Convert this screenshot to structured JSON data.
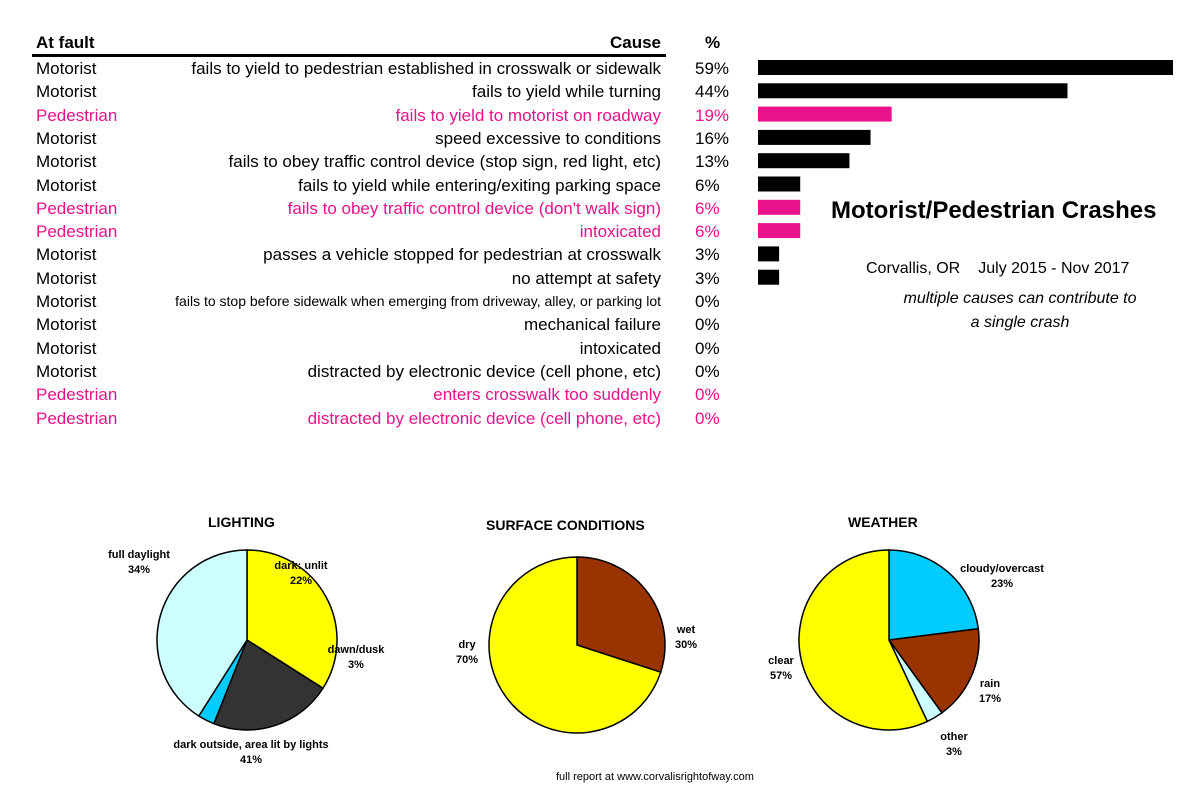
{
  "table": {
    "headers": {
      "fault": "At fault",
      "cause": "Cause",
      "pct": "%"
    },
    "rows": [
      {
        "fault": "Motorist",
        "cause": "fails to yield to pedestrian established in crosswalk or sidewalk",
        "pct": "59%",
        "value": 59,
        "party": "motorist"
      },
      {
        "fault": "Motorist",
        "cause": "fails to yield while turning",
        "pct": "44%",
        "value": 44,
        "party": "motorist"
      },
      {
        "fault": "Pedestrian",
        "cause": "fails to yield to motorist on roadway",
        "pct": "19%",
        "value": 19,
        "party": "pedestrian"
      },
      {
        "fault": "Motorist",
        "cause": "speed excessive to conditions",
        "pct": "16%",
        "value": 16,
        "party": "motorist"
      },
      {
        "fault": "Motorist",
        "cause": "fails to obey traffic control device (stop sign, red light, etc)",
        "pct": "13%",
        "value": 13,
        "party": "motorist"
      },
      {
        "fault": "Motorist",
        "cause": "fails to yield while entering/exiting parking space",
        "pct": "6%",
        "value": 6,
        "party": "motorist"
      },
      {
        "fault": "Pedestrian",
        "cause": "fails to obey traffic control device (don't walk sign)",
        "pct": "6%",
        "value": 6,
        "party": "pedestrian"
      },
      {
        "fault": "Pedestrian",
        "cause": "intoxicated",
        "pct": "6%",
        "value": 6,
        "party": "pedestrian"
      },
      {
        "fault": "Motorist",
        "cause": "passes a vehicle stopped for pedestrian at crosswalk",
        "pct": "3%",
        "value": 3,
        "party": "motorist"
      },
      {
        "fault": "Motorist",
        "cause": "no attempt at safety",
        "pct": "3%",
        "value": 3,
        "party": "motorist"
      },
      {
        "fault": "Motorist",
        "cause": "fails to stop before sidewalk when emerging from driveway, alley, or parking lot",
        "pct": "0%",
        "value": 0,
        "party": "motorist",
        "small": true
      },
      {
        "fault": "Motorist",
        "cause": "mechanical failure",
        "pct": "0%",
        "value": 0,
        "party": "motorist"
      },
      {
        "fault": "Motorist",
        "cause": "intoxicated",
        "pct": "0%",
        "value": 0,
        "party": "motorist"
      },
      {
        "fault": "Motorist",
        "cause": "distracted by electronic device (cell phone, etc)",
        "pct": "0%",
        "value": 0,
        "party": "motorist"
      },
      {
        "fault": "Pedestrian",
        "cause": "enters crosswalk too suddenly",
        "pct": "0%",
        "value": 0,
        "party": "pedestrian"
      },
      {
        "fault": "Pedestrian",
        "cause": "distracted by electronic device (cell phone, etc)",
        "pct": "0%",
        "value": 0,
        "party": "pedestrian"
      }
    ]
  },
  "info": {
    "title": "Motorist/Pedestrian Crashes",
    "location": "Corvallis, OR",
    "period": "July 2015 - Nov 2017",
    "note_line1": "multiple causes can contribute to",
    "note_line2": "a single crash"
  },
  "footer": "full report at www.corvalisrightofway.com",
  "colors": {
    "motorist": "#000000",
    "pedestrian": "#e8138a"
  },
  "chart_data": [
    {
      "type": "bar",
      "orientation": "horizontal",
      "categories": [
        "fails to yield to pedestrian established in crosswalk or sidewalk",
        "fails to yield while turning",
        "fails to yield to motorist on roadway",
        "speed excessive to conditions",
        "fails to obey traffic control device (stop sign, red light, etc)",
        "fails to yield while entering/exiting parking space",
        "fails to obey traffic control device (don't walk sign)",
        "intoxicated",
        "passes a vehicle stopped for pedestrian at crosswalk",
        "no attempt at safety",
        "fails to stop before sidewalk when emerging from driveway, alley, or parking lot",
        "mechanical failure",
        "intoxicated",
        "distracted by electronic device (cell phone, etc)",
        "enters crosswalk too suddenly",
        "distracted by electronic device (cell phone, etc)"
      ],
      "values": [
        59,
        44,
        19,
        16,
        13,
        6,
        6,
        6,
        3,
        3,
        0,
        0,
        0,
        0,
        0,
        0
      ],
      "title": "Motorist/Pedestrian Crashes",
      "xlim": [
        0,
        59
      ],
      "grid": false
    },
    {
      "type": "pie",
      "title": "LIGHTING",
      "labels": [
        "full daylight",
        "dark: unlit",
        "dawn/dusk",
        "dark outside, area lit by lights"
      ],
      "values": [
        34,
        22,
        3,
        41
      ],
      "pct_labels": [
        "34%",
        "22%",
        "3%",
        "41%"
      ],
      "colors": [
        "#ffff00",
        "#333333",
        "#00ccff",
        "#ccffff"
      ]
    },
    {
      "type": "pie",
      "title": "SURFACE CONDITIONS",
      "labels": [
        "wet",
        "dry"
      ],
      "values": [
        30,
        70
      ],
      "pct_labels": [
        "30%",
        "70%"
      ],
      "colors": [
        "#993300",
        "#ffff00"
      ]
    },
    {
      "type": "pie",
      "title": "WEATHER",
      "labels": [
        "cloudy/overcast",
        "rain",
        "other",
        "clear"
      ],
      "values": [
        23,
        17,
        3,
        57
      ],
      "pct_labels": [
        "23%",
        "17%",
        "3%",
        "57%"
      ],
      "colors": [
        "#00ccff",
        "#993300",
        "#ccffff",
        "#ffff00"
      ]
    }
  ]
}
